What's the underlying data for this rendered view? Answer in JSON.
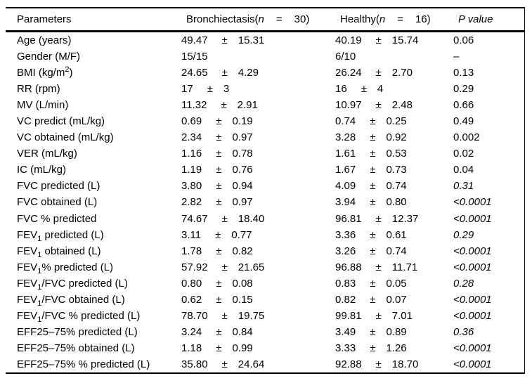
{
  "table": {
    "pm_sign": "±",
    "header": {
      "parameters": "Parameters",
      "group1": {
        "name": "Bronchiectasis(",
        "n": "n",
        "eq": "=",
        "count": "30)"
      },
      "group2": {
        "name": "Healthy(",
        "n": "n",
        "eq": "=",
        "count": "16)"
      },
      "p_label": "P value"
    },
    "rows": [
      {
        "pre": "Age (years)",
        "b_mean": "49.47",
        "b_sd": "15.31",
        "h_mean": "40.19",
        "h_sd": "15.74",
        "p": "0.06",
        "p_italic": false
      },
      {
        "pre": "Gender (M/F)",
        "b_mean": "15/15",
        "h_mean": "6/10",
        "p": "–",
        "p_italic": false
      },
      {
        "pre": "BMI (kg/m",
        "sup": "2",
        "post": ")",
        "b_mean": "24.65",
        "b_sd": "4.29",
        "h_mean": "26.24",
        "h_sd": "2.70",
        "p": "0.13",
        "p_italic": false
      },
      {
        "pre": "RR (rpm)",
        "b_mean": "17",
        "b_sd": "3",
        "h_mean": "16",
        "h_sd": "4",
        "p": "0.29",
        "p_italic": false
      },
      {
        "pre": "MV (L/min)",
        "b_mean": "11.32",
        "b_sd": "2.91",
        "h_mean": "10.97",
        "h_sd": "2.48",
        "p": "0.66",
        "p_italic": false
      },
      {
        "pre": "VC predict (mL/kg)",
        "b_mean": "0.69",
        "b_sd": "0.19",
        "h_mean": "0.74",
        "h_sd": "0.25",
        "p": "0.49",
        "p_italic": false
      },
      {
        "pre": "VC obtained (mL/kg)",
        "b_mean": "2.34",
        "b_sd": "0.97",
        "h_mean": "3.28",
        "h_sd": "0.92",
        "p": "0.002",
        "p_italic": false
      },
      {
        "pre": "VER (mL/kg)",
        "b_mean": "1.16",
        "b_sd": "0.78",
        "h_mean": "1.61",
        "h_sd": "0.53",
        "p": "0.02",
        "p_italic": false
      },
      {
        "pre": "IC (mL/kg)",
        "b_mean": "1.19",
        "b_sd": "0.76",
        "h_mean": "1.67",
        "h_sd": "0.73",
        "p": "0.04",
        "p_italic": false
      },
      {
        "pre": "FVC predicted (L)",
        "b_mean": "3.80",
        "b_sd": "0.94",
        "h_mean": "4.09",
        "h_sd": "0.74",
        "p": "0.31",
        "p_italic": true
      },
      {
        "pre": "FVC obtained (L)",
        "b_mean": "2.82",
        "b_sd": "0.97",
        "h_mean": "3.94",
        "h_sd": "0.80",
        "p": "<0.0001",
        "p_italic": true
      },
      {
        "pre": "FVC % predicted",
        "b_mean": "74.67",
        "b_sd": "18.40",
        "h_mean": "96.81",
        "h_sd": "12.37",
        "p": "<0.0001",
        "p_italic": true
      },
      {
        "pre": "FEV",
        "sub": "1",
        "post": " predicted (L)",
        "b_mean": "3.11",
        "b_sd": "0.77",
        "h_mean": "3.36",
        "h_sd": "0.61",
        "p": "0.29",
        "p_italic": true
      },
      {
        "pre": "FEV",
        "sub": "1",
        "post": " obtained (L)",
        "b_mean": "1.78",
        "b_sd": "0.82",
        "h_mean": "3.26",
        "h_sd": "0.74",
        "p": "<0.0001",
        "p_italic": true
      },
      {
        "pre": "FEV",
        "sub": "1",
        "post": "% predicted (L)",
        "b_mean": "57.92",
        "b_sd": "21.65",
        "h_mean": "96.88",
        "h_sd": "11.71",
        "p": "<0.0001",
        "p_italic": true
      },
      {
        "pre": "FEV",
        "sub": "1",
        "post": "/FVC predicted (L)",
        "b_mean": "0.80",
        "b_sd": "0.08",
        "h_mean": "0.83",
        "h_sd": "0.05",
        "p": "0.28",
        "p_italic": true
      },
      {
        "pre": "FEV",
        "sub": "1",
        "post": "/FVC obtained (L)",
        "b_mean": "0.62",
        "b_sd": "0.15",
        "h_mean": "0.82",
        "h_sd": "0.07",
        "p": "<0.0001",
        "p_italic": true
      },
      {
        "pre": "FEV",
        "sub": "1",
        "post": "/FVC % predicted (L)",
        "b_mean": "78.70",
        "b_sd": "19.75",
        "h_mean": "99.81",
        "h_sd": "7.01",
        "p": "<0.0001",
        "p_italic": true
      },
      {
        "pre": "EFF25–75% predicted (L)",
        "b_mean": "3.24",
        "b_sd": "0.84",
        "h_mean": "3.49",
        "h_sd": "0.89",
        "p": "0.36",
        "p_italic": true
      },
      {
        "pre": "EFF25–75% obtained (L)",
        "b_mean": "1.18",
        "b_sd": "0.99",
        "h_mean": "3.33",
        "h_sd": "1.26",
        "p": "<0.0001",
        "p_italic": true
      },
      {
        "pre": "EFF25–75% % predicted (L)",
        "b_mean": "35.80",
        "b_sd": "24.64",
        "h_mean": "92.88",
        "h_sd": "18.70",
        "p": "<0.0001",
        "p_italic": true
      }
    ]
  }
}
